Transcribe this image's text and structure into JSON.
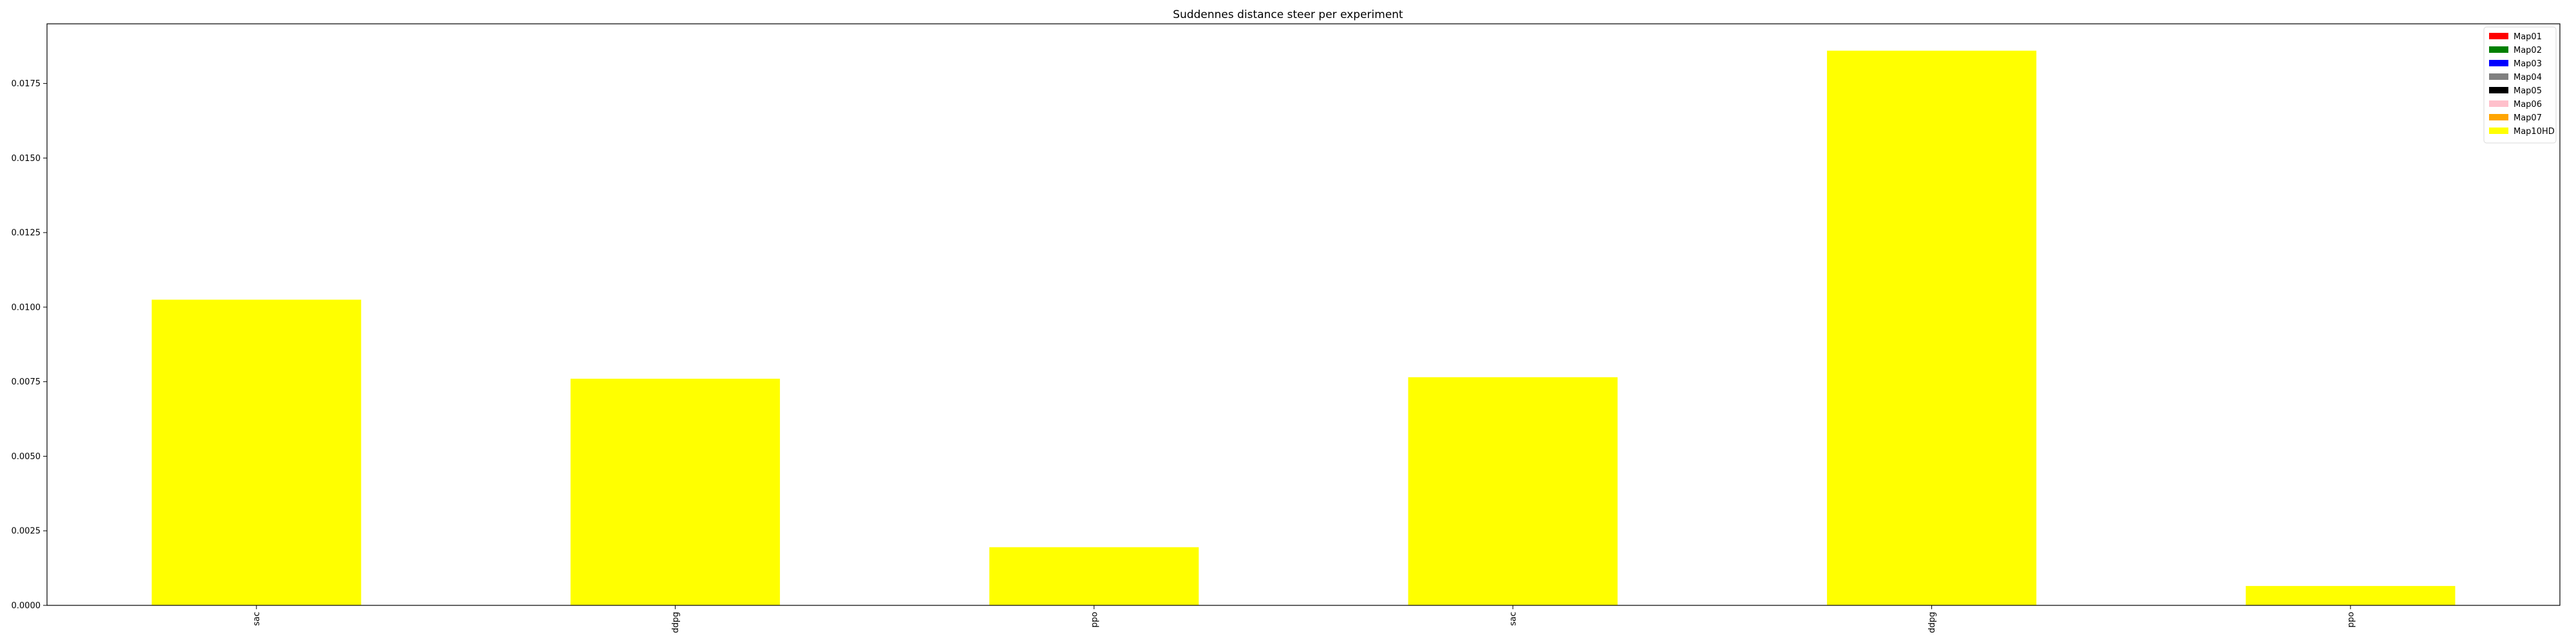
{
  "chart_data": {
    "type": "bar",
    "title": "Suddennes distance steer per experiment",
    "xlabel": "",
    "ylabel": "",
    "categories": [
      "sac",
      "ddpg",
      "ppo",
      "sac",
      "ddpg",
      "ppo"
    ],
    "series": [
      {
        "name": "Map01",
        "color": "#ff0000",
        "values": [
          0,
          0,
          0,
          0,
          0,
          0
        ]
      },
      {
        "name": "Map02",
        "color": "#008000",
        "values": [
          0,
          0,
          0,
          0,
          0,
          0
        ]
      },
      {
        "name": "Map03",
        "color": "#0000ff",
        "values": [
          0,
          0,
          0,
          0,
          0,
          0
        ]
      },
      {
        "name": "Map04",
        "color": "#808080",
        "values": [
          0,
          0,
          0,
          0,
          0,
          0
        ]
      },
      {
        "name": "Map05",
        "color": "#000000",
        "values": [
          0,
          0,
          0,
          0,
          0,
          0
        ]
      },
      {
        "name": "Map06",
        "color": "#ffc0cb",
        "values": [
          0,
          0,
          0,
          0,
          0,
          0
        ]
      },
      {
        "name": "Map07",
        "color": "#ffa500",
        "values": [
          0,
          0,
          0,
          0,
          0,
          0
        ]
      },
      {
        "name": "Map10HD",
        "color": "#ffff00",
        "values": [
          0.01025,
          0.0076,
          0.00195,
          0.00765,
          0.0186,
          0.00065
        ]
      }
    ],
    "ylim": [
      0,
      0.0195
    ],
    "yticks": [
      "0.0000",
      "0.0025",
      "0.0050",
      "0.0075",
      "0.0100",
      "0.0125",
      "0.0150",
      "0.0175"
    ],
    "ytick_values": [
      0,
      0.0025,
      0.005,
      0.0075,
      0.01,
      0.0125,
      0.015,
      0.0175
    ],
    "legend_position": "top-right",
    "grid": false
  }
}
